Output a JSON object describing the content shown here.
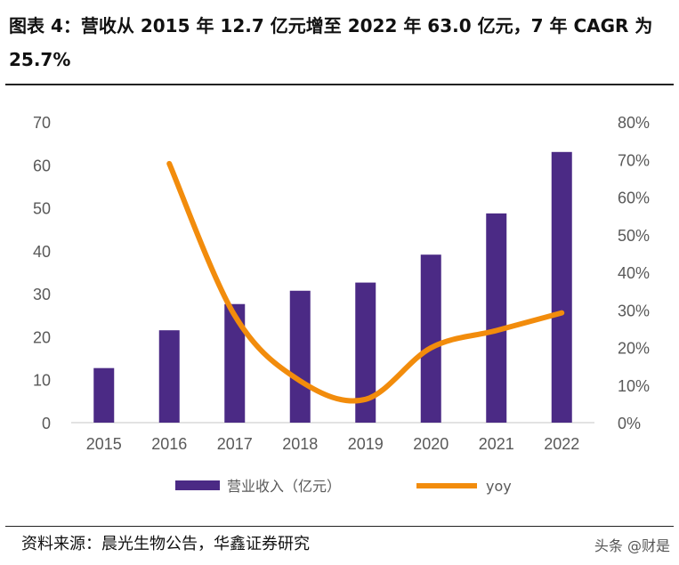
{
  "header": {
    "title": "图表 4：营收从 2015 年 12.7 亿元增至 2022 年 63.0 亿元，7 年 CAGR 为 25.7%"
  },
  "footer": {
    "source": "资料来源：晨光生物公告，华鑫证券研究",
    "watermark": "头条 @财是"
  },
  "colors": {
    "bar": "#4b2a85",
    "line": "#f28c0c",
    "axis": "#d9d9d9",
    "text": "#595959"
  },
  "chart_data": {
    "type": "bar",
    "title": "",
    "categories": [
      "2015",
      "2016",
      "2017",
      "2018",
      "2019",
      "2020",
      "2021",
      "2022"
    ],
    "series": [
      {
        "name": "营业收入（亿元）",
        "type": "bar",
        "axis": "left",
        "values": [
          12.7,
          21.5,
          27.6,
          30.7,
          32.6,
          39.1,
          48.7,
          63.0
        ]
      },
      {
        "name": "yoy",
        "type": "line",
        "axis": "right",
        "smooth": true,
        "values": [
          null,
          68.9,
          28.5,
          11.1,
          6.2,
          19.9,
          24.5,
          29.2
        ]
      }
    ],
    "y_left": {
      "min": 0,
      "max": 70,
      "step": 10,
      "tick_labels": [
        "0",
        "10",
        "20",
        "30",
        "40",
        "50",
        "60",
        "70"
      ]
    },
    "y_right": {
      "min": 0,
      "max": 80,
      "step": 10,
      "tick_labels": [
        "0%",
        "10%",
        "20%",
        "30%",
        "40%",
        "50%",
        "60%",
        "70%",
        "80%"
      ]
    },
    "legend": {
      "position": "bottom",
      "entries": [
        "营业收入（亿元）",
        "yoy"
      ]
    }
  }
}
